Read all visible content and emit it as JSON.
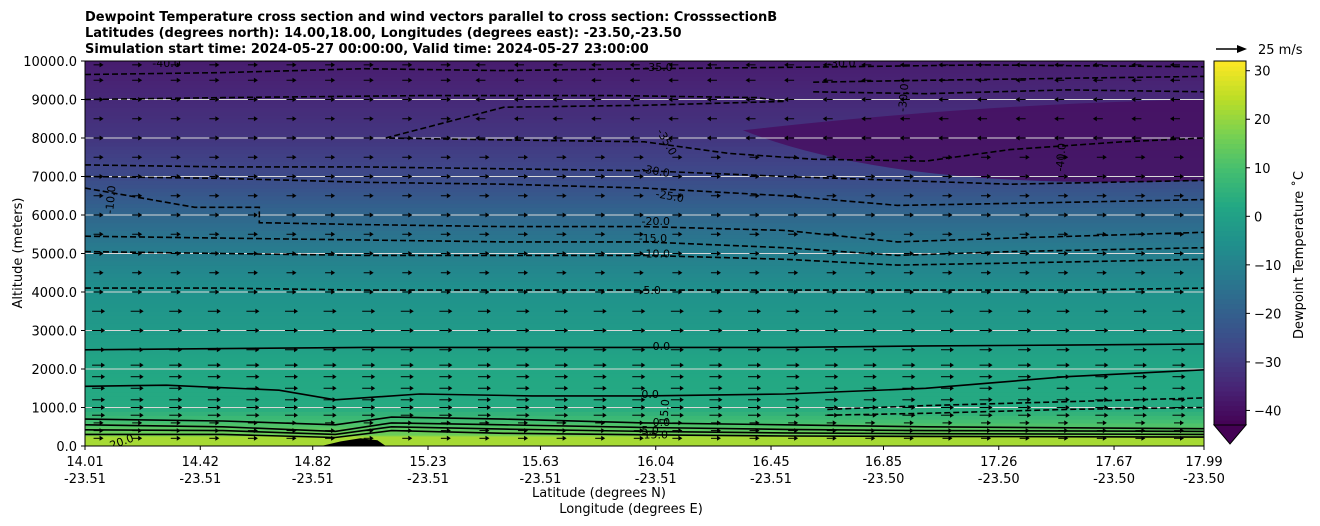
{
  "chart_data": {
    "type": "heatmap",
    "title": [
      "Dewpoint Temperature cross section and wind vectors parallel to cross section: CrosssectionB",
      "Latitudes (degrees north): 14.00,18.00, Longitudes (degrees east): -23.50,-23.50",
      "Simulation start time: 2024-05-27 00:00:00, Valid time: 2024-05-27 23:00:00"
    ],
    "ylabel": "Altitude (meters)",
    "xlabel": [
      "Latitude (degrees N)",
      "Longitude (degrees E)"
    ],
    "ylim": [
      0,
      10000
    ],
    "yticks": [
      "0.0",
      "1000.0",
      "2000.0",
      "3000.0",
      "4000.0",
      "5000.0",
      "6000.0",
      "7000.0",
      "8000.0",
      "9000.0",
      "10000.0"
    ],
    "xticks": [
      {
        "lat": "14.01",
        "lon": "-23.51"
      },
      {
        "lat": "14.42",
        "lon": "-23.51"
      },
      {
        "lat": "14.82",
        "lon": "-23.51"
      },
      {
        "lat": "15.23",
        "lon": "-23.51"
      },
      {
        "lat": "15.63",
        "lon": "-23.51"
      },
      {
        "lat": "16.04",
        "lon": "-23.51"
      },
      {
        "lat": "16.45",
        "lon": "-23.51"
      },
      {
        "lat": "16.85",
        "lon": "-23.50"
      },
      {
        "lat": "17.26",
        "lon": "-23.50"
      },
      {
        "lat": "17.67",
        "lon": "-23.50"
      },
      {
        "lat": "17.99",
        "lon": "-23.50"
      }
    ],
    "grid": "horizontal",
    "colorbar": {
      "label": "Dewpoint Temperature ˚C",
      "ticks": [
        "30",
        "20",
        "10",
        "0",
        "−10",
        "−20",
        "−30",
        "−40"
      ],
      "range": [
        -43,
        32
      ],
      "extend": "min",
      "colormap": "viridis"
    },
    "quiver_key": "25 m/s",
    "dewpoint_profile": [
      {
        "z": 0,
        "t": 22
      },
      {
        "z": 500,
        "t": 12
      },
      {
        "z": 1000,
        "t": 3
      },
      {
        "z": 2000,
        "t": 2
      },
      {
        "z": 3000,
        "t": -2
      },
      {
        "z": 4000,
        "t": -5
      },
      {
        "z": 5000,
        "t": -11
      },
      {
        "z": 6000,
        "t": -18
      },
      {
        "z": 7000,
        "t": -26
      },
      {
        "z": 8000,
        "t": -31
      },
      {
        "z": 9000,
        "t": -34
      },
      {
        "z": 10000,
        "t": -37
      }
    ],
    "contour_labels": [
      {
        "text": "-40.0",
        "lat": 14.3,
        "z": 9950,
        "rot": 0
      },
      {
        "text": "-35.0",
        "lat": 16.05,
        "z": 9850,
        "rot": 0
      },
      {
        "text": "-30.0",
        "lat": 16.7,
        "z": 9950,
        "rot": 0
      },
      {
        "text": "-30.0",
        "lat": 16.92,
        "z": 9050,
        "rot": -85
      },
      {
        "text": "-35.0",
        "lat": 16.08,
        "z": 7900,
        "rot": 60
      },
      {
        "text": "-30.0",
        "lat": 16.04,
        "z": 7150,
        "rot": 10
      },
      {
        "text": "-25.0",
        "lat": 16.09,
        "z": 6500,
        "rot": 10
      },
      {
        "text": "-20.0",
        "lat": 16.04,
        "z": 5850,
        "rot": 0
      },
      {
        "text": "-15.0",
        "lat": 16.03,
        "z": 5400,
        "rot": 0
      },
      {
        "text": "-10.0",
        "lat": 16.04,
        "z": 5000,
        "rot": 0
      },
      {
        "text": "-5.0",
        "lat": 16.02,
        "z": 4050,
        "rot": 0
      },
      {
        "text": "-40.0",
        "lat": 17.48,
        "z": 7500,
        "rot": -85
      },
      {
        "text": "-10.0",
        "lat": 14.1,
        "z": 6400,
        "rot": -85
      },
      {
        "text": "0.0",
        "lat": 16.06,
        "z": 2600,
        "rot": 0
      },
      {
        "text": "0.0",
        "lat": 16.02,
        "z": 1350,
        "rot": 0
      },
      {
        "text": "0.0",
        "lat": 16.06,
        "z": 620,
        "rot": 0
      },
      {
        "text": "5.0",
        "lat": 16.02,
        "z": 420,
        "rot": 0
      },
      {
        "text": "15.0",
        "lat": 16.07,
        "z": 900,
        "rot": -85
      },
      {
        "text": "15.0",
        "lat": 16.04,
        "z": 300,
        "rot": 0
      },
      {
        "text": "20.0",
        "lat": 14.14,
        "z": 120,
        "rot": -20
      }
    ],
    "contours": [
      {
        "level": -35,
        "dashed": true,
        "pts": [
          [
            14.01,
            9000
          ],
          [
            14.5,
            9050
          ],
          [
            15.2,
            9100
          ],
          [
            15.9,
            9100
          ],
          [
            16.4,
            9050
          ],
          [
            16.5,
            8950
          ],
          [
            16.0,
            8850
          ],
          [
            15.5,
            8800
          ],
          [
            15.08,
            8000
          ],
          [
            15.5,
            7950
          ],
          [
            16.0,
            7900
          ],
          [
            16.3,
            7600
          ],
          [
            16.6,
            7450
          ],
          [
            17.0,
            7400
          ],
          [
            17.3,
            7700
          ],
          [
            17.7,
            7900
          ],
          [
            17.99,
            8000
          ]
        ]
      },
      {
        "level": -35,
        "dashed": true,
        "pts": [
          [
            16.6,
            9450
          ],
          [
            17.0,
            9500
          ],
          [
            17.5,
            9550
          ],
          [
            17.99,
            9600
          ]
        ]
      },
      {
        "level": -35,
        "dashed": true,
        "pts": [
          [
            16.6,
            9200
          ],
          [
            17.0,
            9150
          ],
          [
            17.5,
            9250
          ],
          [
            17.99,
            9200
          ]
        ]
      },
      {
        "level": -40,
        "dashed": true,
        "pts": [
          [
            14.01,
            9650
          ],
          [
            14.5,
            9700
          ],
          [
            15.0,
            9800
          ],
          [
            15.5,
            9750
          ],
          [
            16.0,
            9800
          ],
          [
            16.7,
            9850
          ],
          [
            17.2,
            9900
          ],
          [
            17.99,
            9850
          ]
        ]
      },
      {
        "level": -30,
        "dashed": true,
        "pts": [
          [
            14.01,
            7300
          ],
          [
            14.5,
            7250
          ],
          [
            15.0,
            7250
          ],
          [
            15.5,
            7200
          ],
          [
            16.0,
            7150
          ],
          [
            16.5,
            7000
          ],
          [
            16.9,
            6900
          ],
          [
            17.3,
            6800
          ],
          [
            17.99,
            6900
          ]
        ]
      },
      {
        "level": -25,
        "dashed": true,
        "pts": [
          [
            14.01,
            7000
          ],
          [
            14.5,
            6950
          ],
          [
            15.0,
            6850
          ],
          [
            15.5,
            6800
          ],
          [
            16.0,
            6700
          ],
          [
            16.5,
            6500
          ],
          [
            16.9,
            6250
          ],
          [
            17.3,
            6300
          ],
          [
            17.99,
            6400
          ]
        ]
      },
      {
        "level": -20,
        "dashed": true,
        "pts": [
          [
            14.01,
            6700
          ],
          [
            14.4,
            6200
          ],
          [
            14.63,
            6200
          ],
          [
            14.63,
            5800
          ],
          [
            15.0,
            5750
          ],
          [
            15.5,
            5700
          ],
          [
            16.0,
            5700
          ],
          [
            16.5,
            5600
          ],
          [
            16.9,
            5300
          ],
          [
            17.3,
            5400
          ],
          [
            17.99,
            5550
          ]
        ]
      },
      {
        "level": -15,
        "dashed": true,
        "pts": [
          [
            14.01,
            5450
          ],
          [
            14.5,
            5400
          ],
          [
            15.0,
            5350
          ],
          [
            15.5,
            5300
          ],
          [
            16.0,
            5300
          ],
          [
            16.5,
            5150
          ],
          [
            16.9,
            4950
          ],
          [
            17.3,
            5050
          ],
          [
            17.99,
            5150
          ]
        ]
      },
      {
        "level": -10,
        "dashed": true,
        "pts": [
          [
            14.01,
            5050
          ],
          [
            14.5,
            5000
          ],
          [
            15.0,
            4950
          ],
          [
            15.5,
            4950
          ],
          [
            16.0,
            4950
          ],
          [
            16.5,
            4850
          ],
          [
            16.9,
            4700
          ],
          [
            17.3,
            4750
          ],
          [
            17.99,
            4850
          ]
        ]
      },
      {
        "level": -5,
        "dashed": true,
        "pts": [
          [
            14.01,
            4100
          ],
          [
            14.5,
            4100
          ],
          [
            15.0,
            4050
          ],
          [
            15.5,
            4050
          ],
          [
            16.0,
            4050
          ],
          [
            16.5,
            4050
          ],
          [
            17.0,
            4050
          ],
          [
            17.5,
            4050
          ],
          [
            17.99,
            4100
          ]
        ]
      },
      {
        "level": 0,
        "dashed": false,
        "pts": [
          [
            14.01,
            2500
          ],
          [
            14.5,
            2530
          ],
          [
            15.0,
            2560
          ],
          [
            15.5,
            2560
          ],
          [
            16.0,
            2560
          ],
          [
            16.5,
            2560
          ],
          [
            17.0,
            2600
          ],
          [
            17.5,
            2620
          ],
          [
            17.99,
            2650
          ]
        ]
      },
      {
        "level": 0,
        "dashed": false,
        "pts": [
          [
            14.01,
            1550
          ],
          [
            14.3,
            1580
          ],
          [
            14.7,
            1450
          ],
          [
            14.9,
            1200
          ],
          [
            15.2,
            1350
          ],
          [
            15.6,
            1300
          ],
          [
            16.0,
            1300
          ],
          [
            16.5,
            1350
          ],
          [
            17.0,
            1500
          ],
          [
            17.5,
            1800
          ],
          [
            17.99,
            1980
          ]
        ]
      },
      {
        "level": -5,
        "dashed": true,
        "pts": [
          [
            16.65,
            950
          ],
          [
            17.0,
            1050
          ],
          [
            17.5,
            1150
          ],
          [
            17.99,
            1250
          ]
        ]
      },
      {
        "level": -10,
        "dashed": true,
        "pts": [
          [
            16.65,
            800
          ],
          [
            17.0,
            850
          ],
          [
            17.5,
            950
          ],
          [
            17.99,
            1000
          ]
        ]
      },
      {
        "level": 0,
        "dashed": false,
        "pts": [
          [
            14.01,
            700
          ],
          [
            14.5,
            650
          ],
          [
            14.9,
            550
          ],
          [
            15.1,
            750
          ],
          [
            15.5,
            700
          ],
          [
            16.0,
            600
          ],
          [
            16.5,
            550
          ],
          [
            17.0,
            500
          ],
          [
            17.99,
            450
          ]
        ]
      },
      {
        "level": 5,
        "dashed": false,
        "pts": [
          [
            14.01,
            550
          ],
          [
            14.5,
            500
          ],
          [
            14.9,
            380
          ],
          [
            15.1,
            600
          ],
          [
            15.5,
            550
          ],
          [
            16.0,
            480
          ],
          [
            16.5,
            430
          ],
          [
            17.0,
            400
          ],
          [
            17.99,
            380
          ]
        ]
      },
      {
        "level": 10,
        "dashed": false,
        "pts": [
          [
            14.01,
            420
          ],
          [
            14.5,
            400
          ],
          [
            14.9,
            300
          ],
          [
            15.1,
            500
          ],
          [
            15.5,
            440
          ],
          [
            16.0,
            380
          ],
          [
            16.5,
            340
          ],
          [
            17.0,
            320
          ],
          [
            17.99,
            300
          ]
        ]
      },
      {
        "level": 15,
        "dashed": false,
        "pts": [
          [
            14.01,
            300
          ],
          [
            14.5,
            300
          ],
          [
            14.9,
            220
          ],
          [
            15.1,
            400
          ],
          [
            15.5,
            330
          ],
          [
            16.0,
            290
          ],
          [
            16.5,
            260
          ],
          [
            17.0,
            250
          ],
          [
            17.99,
            230
          ]
        ]
      }
    ],
    "terrain": [
      [
        14.85,
        0
      ],
      [
        14.92,
        120
      ],
      [
        14.99,
        200
      ],
      [
        15.05,
        150
      ],
      [
        15.08,
        0
      ]
    ],
    "wind_arrow_rows_z": [
      200,
      400,
      600,
      800,
      1000,
      1200,
      1500,
      1800,
      2100,
      2500,
      3000,
      3500,
      4000,
      4500,
      5000,
      5500,
      6000,
      6500,
      7000,
      7500,
      8000,
      8500,
      9000,
      9500,
      9900
    ]
  }
}
